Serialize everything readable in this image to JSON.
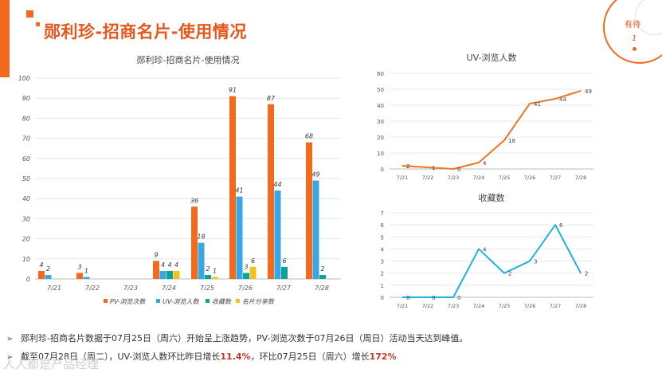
{
  "header": {
    "title": "郧利珍-招商名片-使用情况",
    "corner_text": "有待",
    "corner_num": "1"
  },
  "colors": {
    "accent": "#f26a1b",
    "pv": "#f26a1b",
    "uv": "#3aa6e6",
    "fav": "#0aa39a",
    "share": "#f2c21b",
    "line_uv": "#ee7623",
    "line_fav": "#1fb3dc"
  },
  "chart_data": [
    {
      "type": "bar",
      "title": "郧利珍-招商名片-使用情况",
      "categories": [
        "7/21",
        "7/22",
        "7/23",
        "7/24",
        "7/25",
        "7/26",
        "7/27",
        "7/28"
      ],
      "ylim": [
        0,
        100
      ],
      "yticks": [
        0,
        10,
        20,
        30,
        40,
        50,
        60,
        70,
        80,
        90,
        100
      ],
      "series": [
        {
          "name": "PV-浏览次数",
          "values": [
            4,
            3,
            0,
            9,
            36,
            91,
            87,
            68
          ]
        },
        {
          "name": "UV-浏览人数",
          "values": [
            2,
            1,
            0,
            4,
            18,
            41,
            44,
            49
          ]
        },
        {
          "name": "收藏数",
          "values": [
            0,
            0,
            0,
            4,
            2,
            3,
            6,
            2
          ]
        },
        {
          "name": "名片分享数",
          "values": [
            0,
            0,
            0,
            4,
            1,
            6,
            0,
            0
          ]
        }
      ],
      "labels": [
        [
          "4",
          "3",
          "",
          "9",
          "36",
          "91",
          "87",
          "68"
        ],
        [
          "2",
          "1",
          "",
          "4",
          "18",
          "41",
          "44",
          "49"
        ],
        [
          "",
          "",
          "",
          "4",
          "2",
          "3",
          "6",
          "2"
        ],
        [
          "",
          "",
          "",
          "4",
          "1",
          "6",
          "",
          ""
        ]
      ]
    },
    {
      "type": "line",
      "title": "UV-浏览人数",
      "categories": [
        "7/21",
        "7/22",
        "7/23",
        "7/24",
        "7/25",
        "7/26",
        "7/27",
        "7/28"
      ],
      "values": [
        2,
        1,
        0,
        4,
        18,
        41,
        44,
        49
      ],
      "ylim": [
        0,
        60
      ],
      "yticks": [
        0,
        10,
        20,
        30,
        40,
        50,
        60
      ]
    },
    {
      "type": "line",
      "title": "收藏数",
      "categories": [
        "7/21",
        "7/22",
        "7/23",
        "7/24",
        "7/25",
        "7/26",
        "7/27",
        "7/28"
      ],
      "values": [
        0,
        0,
        0,
        4,
        2,
        3,
        6,
        2
      ],
      "ylim": [
        0,
        7
      ],
      "yticks": [
        0,
        1,
        2,
        3,
        4,
        5,
        6,
        7
      ]
    }
  ],
  "bullets": [
    {
      "text": "郧利珍-招商名片数据于07月25日（周六）开始呈上涨趋势，PV-浏览次数于07月26日（周日）活动当天达到峰值。"
    },
    {
      "pre": "截至07月28日（周二），UV-浏览人数环比昨日增长",
      "v1": "11.4%",
      "mid": "，环比07月25日（周六）增长",
      "v2": "172%"
    }
  ],
  "footer": {
    "mark": "人人都是产品经理"
  }
}
